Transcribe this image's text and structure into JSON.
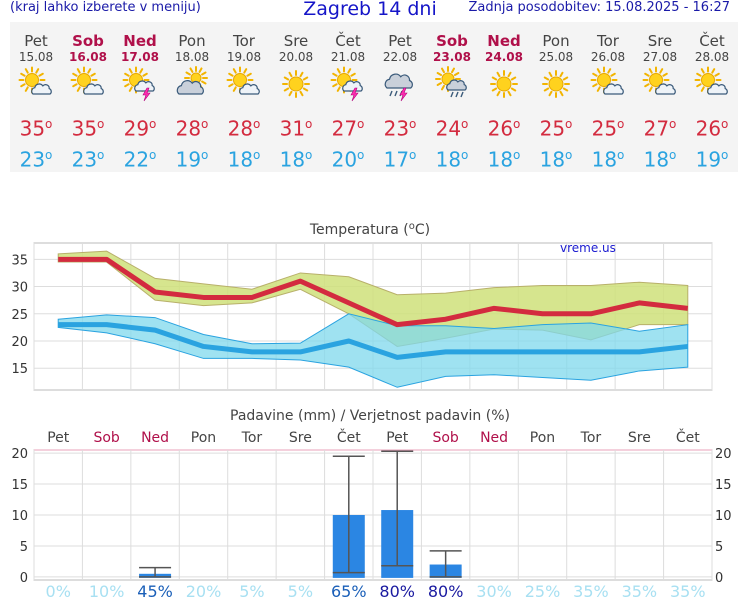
{
  "header": {
    "left_text": "(kraj lahko izberete v meniju)",
    "title": "Zagreb 14 dni",
    "right_text": "Zadnja posodobitev: 15.08.2025 - 16:27"
  },
  "degree_symbol": "o",
  "days": [
    {
      "name": "Pet",
      "date": "15.08",
      "weekend": false,
      "icon": "sun-cloud-icon",
      "tmax": "35",
      "tmin": "23"
    },
    {
      "name": "Sob",
      "date": "16.08",
      "weekend": true,
      "icon": "sun-cloud-icon",
      "tmax": "35",
      "tmin": "23"
    },
    {
      "name": "Ned",
      "date": "17.08",
      "weekend": true,
      "icon": "sun-cloud-storm-icon",
      "tmax": "29",
      "tmin": "22"
    },
    {
      "name": "Pon",
      "date": "18.08",
      "weekend": false,
      "icon": "cloud-sun-icon",
      "tmax": "28",
      "tmin": "19"
    },
    {
      "name": "Tor",
      "date": "19.08",
      "weekend": false,
      "icon": "sun-cloud-icon",
      "tmax": "28",
      "tmin": "18"
    },
    {
      "name": "Sre",
      "date": "20.08",
      "weekend": false,
      "icon": "sun-icon",
      "tmax": "31",
      "tmin": "18"
    },
    {
      "name": "Čet",
      "date": "21.08",
      "weekend": false,
      "icon": "sun-cloud-storm-icon",
      "tmax": "27",
      "tmin": "20"
    },
    {
      "name": "Pet",
      "date": "22.08",
      "weekend": false,
      "icon": "cloud-rain-storm-icon",
      "tmax": "23",
      "tmin": "17"
    },
    {
      "name": "Sob",
      "date": "23.08",
      "weekend": true,
      "icon": "sun-cloud-rain-icon",
      "tmax": "24",
      "tmin": "18"
    },
    {
      "name": "Ned",
      "date": "24.08",
      "weekend": true,
      "icon": "sun-icon",
      "tmax": "26",
      "tmin": "18"
    },
    {
      "name": "Pon",
      "date": "25.08",
      "weekend": false,
      "icon": "sun-icon",
      "tmax": "25",
      "tmin": "18"
    },
    {
      "name": "Tor",
      "date": "26.08",
      "weekend": false,
      "icon": "sun-cloud-icon",
      "tmax": "25",
      "tmin": "18"
    },
    {
      "name": "Sre",
      "date": "27.08",
      "weekend": false,
      "icon": "sun-cloud-icon",
      "tmax": "27",
      "tmin": "18"
    },
    {
      "name": "Čet",
      "date": "28.08",
      "weekend": false,
      "icon": "sun-cloud-icon",
      "tmax": "26",
      "tmin": "19"
    }
  ],
  "colors": {
    "tmax": "#d32b3f",
    "tmin": "#2aa3e0",
    "weekend": "#b0104a",
    "tmax_band": "#cfe07a",
    "tmin_band": "#7fd8ec",
    "overlap_band": "#7cc87a",
    "precip_bar": "#2b86e3",
    "whisker": "#555555"
  },
  "chart_data": [
    {
      "type": "line",
      "title": "Temperatura (oC)",
      "watermark": "vreme.us",
      "categories": [
        "Pet",
        "Sob",
        "Ned",
        "Pon",
        "Tor",
        "Sre",
        "Čet",
        "Pet",
        "Sob",
        "Ned",
        "Pon",
        "Tor",
        "Sre",
        "Čet"
      ],
      "yticks": [
        15,
        20,
        25,
        30,
        35
      ],
      "ylim": [
        11,
        38
      ],
      "grid": true,
      "series": [
        {
          "values": [
            35,
            35,
            29,
            28,
            28,
            31,
            27,
            23,
            24,
            26,
            25,
            25,
            27,
            26
          ]
        },
        {
          "values": [
            23,
            23,
            22,
            19,
            18,
            18,
            20,
            17,
            18,
            18,
            18,
            18,
            18,
            19
          ]
        }
      ],
      "tmax_band_upper": [
        36,
        36.5,
        31.5,
        30.5,
        29.5,
        32.5,
        31.8,
        28.5,
        28.8,
        29.8,
        30.2,
        30.2,
        30.8,
        30.2
      ],
      "tmax_band_lower": [
        34.5,
        34.5,
        27.5,
        26.5,
        27,
        29.5,
        25,
        19,
        20.5,
        22.2,
        22,
        20.2,
        23,
        23
      ],
      "tmin_band_upper": [
        24,
        24.8,
        24.3,
        21.2,
        19.5,
        19.6,
        25,
        22.8,
        22.8,
        22.3,
        23,
        23.3,
        21.8,
        23
      ],
      "tmin_band_lower": [
        22.5,
        21.5,
        19.5,
        16.8,
        16.8,
        16.5,
        15.2,
        11.5,
        13.5,
        13.8,
        13.3,
        12.8,
        14.5,
        15.2
      ]
    },
    {
      "type": "bar",
      "title": "Padavine (mm) / Verjetnost padavin (%)",
      "categories": [
        "Pet",
        "Sob",
        "Ned",
        "Pon",
        "Tor",
        "Sre",
        "Čet",
        "Pet",
        "Sob",
        "Ned",
        "Pon",
        "Tor",
        "Sre",
        "Čet"
      ],
      "yticks": [
        0,
        5,
        10,
        15,
        20
      ],
      "ylim": [
        -0.5,
        20.5
      ],
      "grid": true,
      "values": [
        0,
        0,
        0.5,
        0,
        0,
        0,
        10,
        10.8,
        2,
        0,
        0,
        0,
        0,
        0
      ],
      "range_low": [
        null,
        null,
        0,
        null,
        null,
        null,
        0.7,
        1.8,
        0,
        null,
        null,
        null,
        null,
        null
      ],
      "range_high": [
        null,
        null,
        1.5,
        null,
        null,
        null,
        19.5,
        20.3,
        4.2,
        null,
        null,
        null,
        null,
        null
      ],
      "probability_labels": [
        "0%",
        "10%",
        "45%",
        "20%",
        "5%",
        "5%",
        "65%",
        "80%",
        "80%",
        "30%",
        "25%",
        "35%",
        "35%",
        "35%"
      ],
      "probability_colors": [
        "#a8e0f2",
        "#a8e0f2",
        "#1a5fb8",
        "#a8e0f2",
        "#a8e0f2",
        "#a8e0f2",
        "#1a5fb8",
        "#1a1aa0",
        "#1a1aa0",
        "#a8e0f2",
        "#a8e0f2",
        "#a8e0f2",
        "#a8e0f2",
        "#a8e0f2"
      ]
    }
  ]
}
